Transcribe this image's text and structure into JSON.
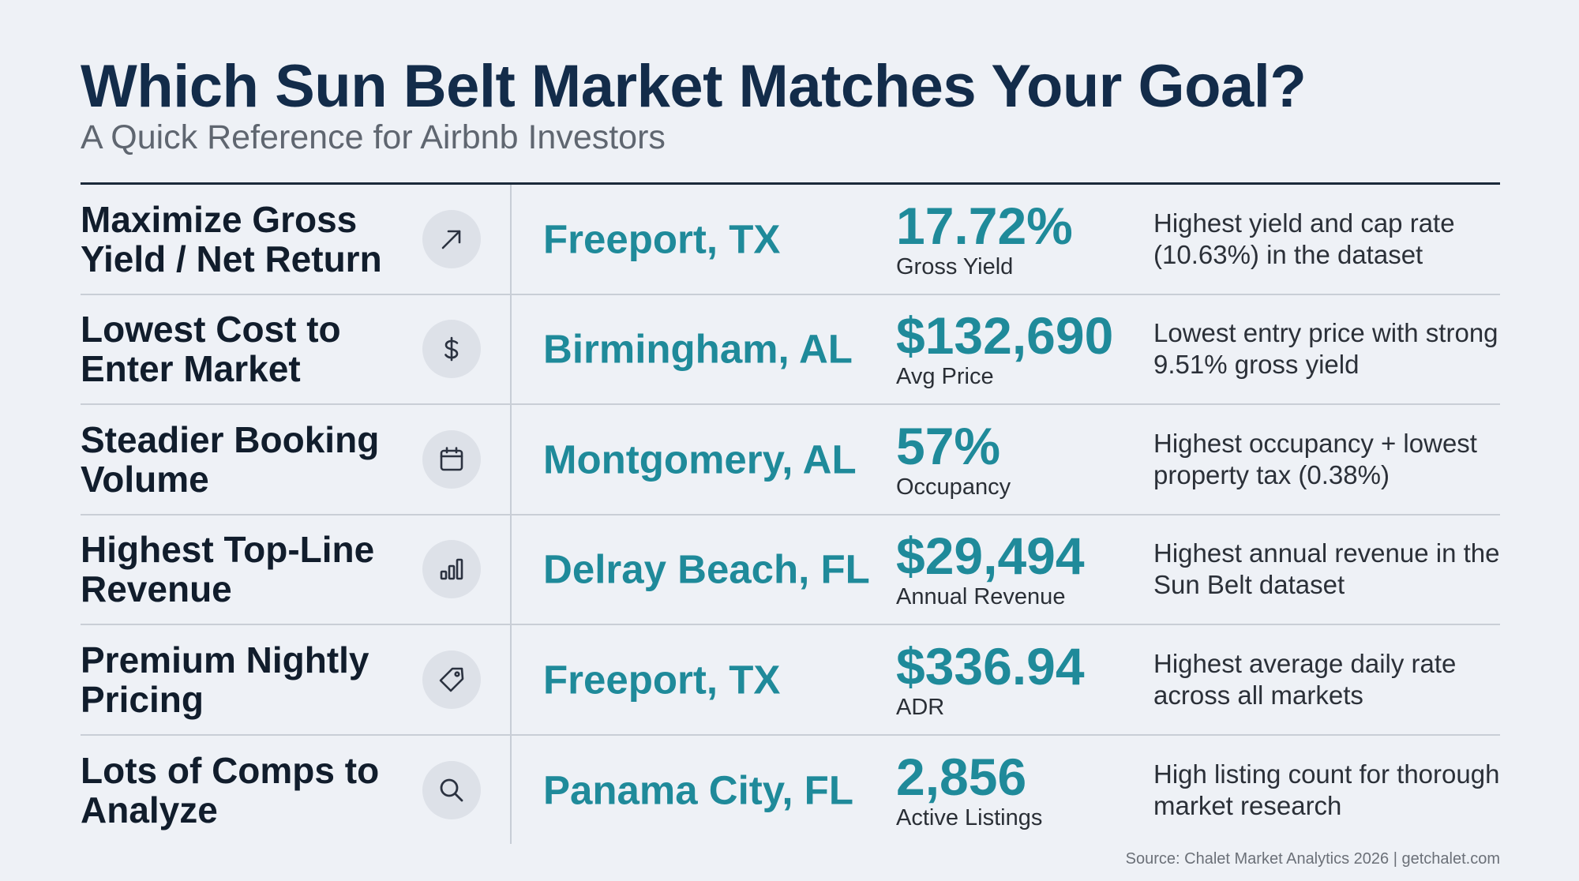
{
  "header": {
    "title": "Which Sun Belt Market Matches Your Goal?",
    "subtitle": "A Quick Reference for Airbnb Investors"
  },
  "rows": [
    {
      "goal": "Maximize Gross Yield / Net Return",
      "icon": "trend-arrow-icon",
      "market": "Freeport, TX",
      "metric_value": "17.72%",
      "metric_label": "Gross Yield",
      "note": "Highest yield and cap rate (10.63%) in the dataset"
    },
    {
      "goal": "Lowest Cost to Enter Market",
      "icon": "dollar-icon",
      "market": "Birmingham, AL",
      "metric_value": "$132,690",
      "metric_label": "Avg Price",
      "note": "Lowest entry price with strong 9.51% gross yield"
    },
    {
      "goal": "Steadier Booking Volume",
      "icon": "calendar-icon",
      "market": "Montgomery, AL",
      "metric_value": "57%",
      "metric_label": "Occupancy",
      "note": "Highest occupancy + lowest property tax (0.38%)"
    },
    {
      "goal": "Highest Top-Line Revenue",
      "icon": "bar-chart-icon",
      "market": "Delray Beach, FL",
      "metric_value": "$29,494",
      "metric_label": "Annual Revenue",
      "note": "Highest annual revenue in the Sun Belt dataset"
    },
    {
      "goal": "Premium Nightly Pricing",
      "icon": "price-tag-icon",
      "market": "Freeport, TX",
      "metric_value": "$336.94",
      "metric_label": "ADR",
      "note": "Highest average daily rate across all markets"
    },
    {
      "goal": "Lots of Comps to Analyze",
      "icon": "search-icon",
      "market": "Panama City, FL",
      "metric_value": "2,856",
      "metric_label": "Active Listings",
      "note": "High listing count for thorough market research"
    }
  ],
  "footer": {
    "source": "Source: Chalet Market Analytics 2026 | getchalet.com"
  },
  "colors": {
    "accent_teal": "#1f8a9a",
    "title_navy": "#132c4a",
    "background": "#eef1f6"
  }
}
